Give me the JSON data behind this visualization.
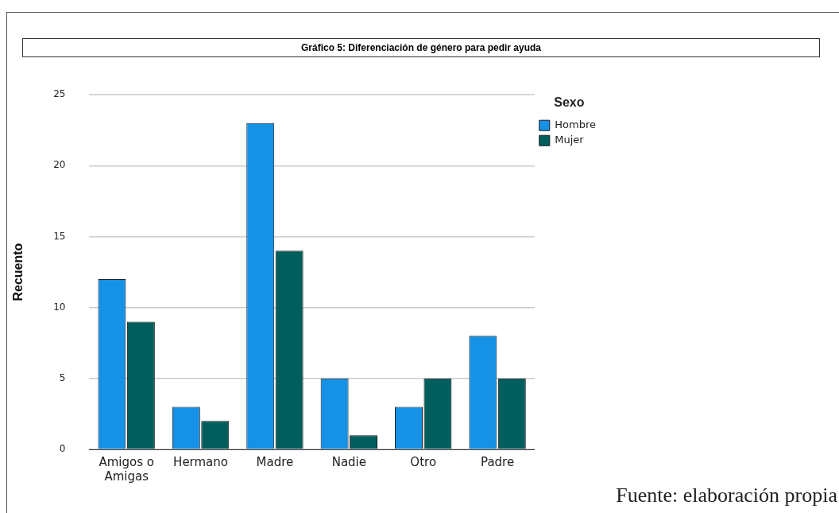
{
  "chart_data": {
    "type": "bar",
    "title": "Gráfico 5: Diferenciación de género para pedir ayuda",
    "ylabel": "Recuento",
    "legend_title": "Sexo",
    "legend": "top right",
    "categories": [
      "Amigos o Amigas",
      "Hermano",
      "Madre",
      "Nadie",
      "Otro",
      "Padre"
    ],
    "series": [
      {
        "name": "Hombre",
        "color": "#1591e6",
        "values": [
          12,
          3,
          23,
          5,
          3,
          8
        ]
      },
      {
        "name": "Mujer",
        "color": "#005e5c",
        "values": [
          9,
          2,
          14,
          1,
          5,
          5
        ]
      }
    ],
    "ylim": [
      0,
      25
    ],
    "yticks": [
      0,
      5,
      10,
      15,
      20,
      25
    ],
    "grid": "y",
    "annotations": [
      "Fuente: elaboración propia"
    ]
  }
}
